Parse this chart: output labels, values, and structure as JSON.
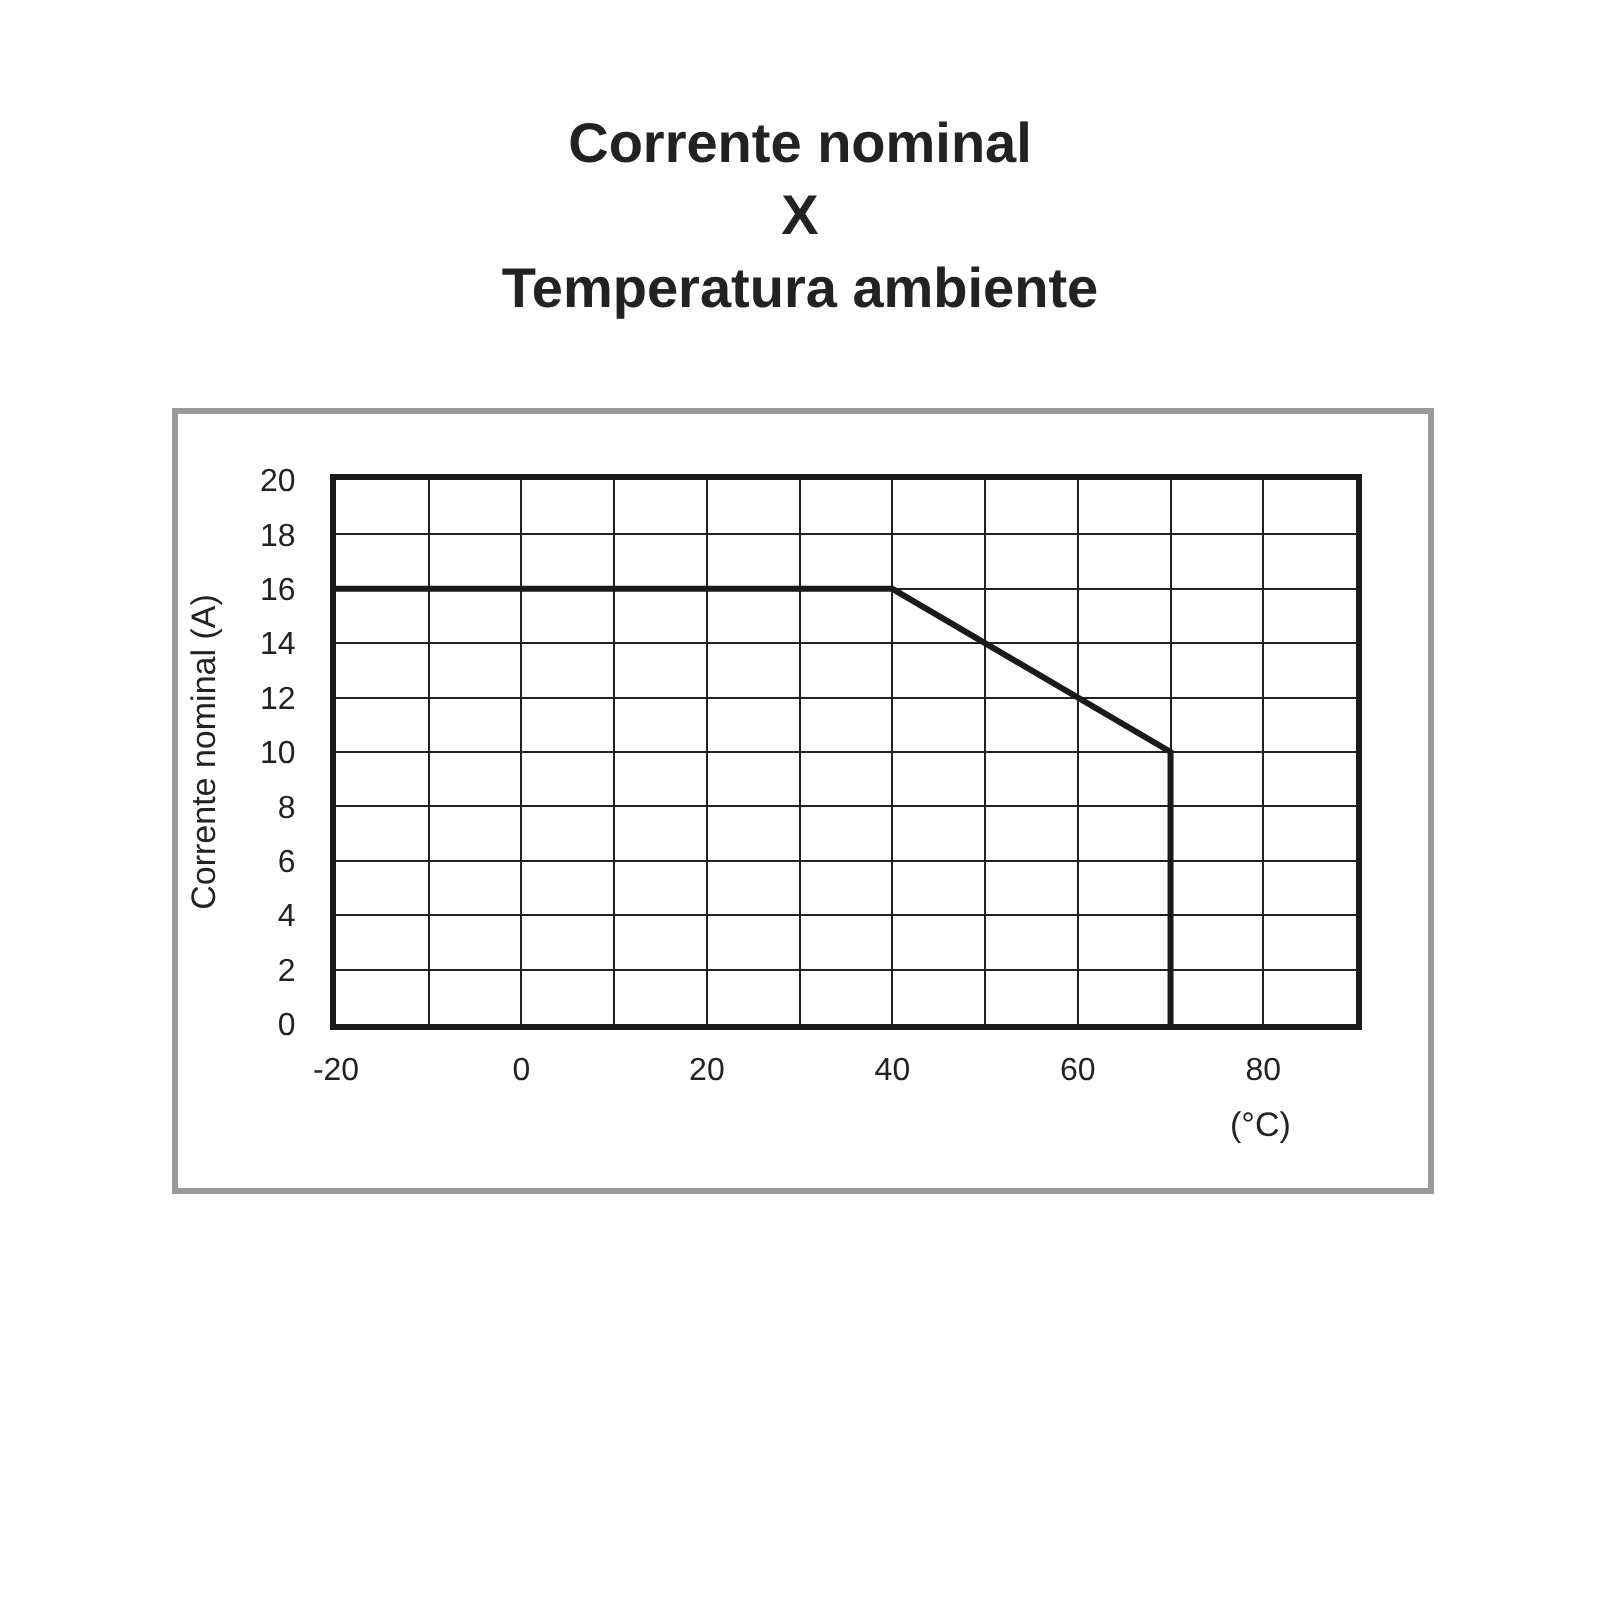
{
  "chart_data": {
    "type": "line",
    "title": "Corrente nominal\nX\nTemperatura ambiente",
    "xlabel": "(°C)",
    "ylabel": "Corrente nominal (A)",
    "x": [
      -20,
      40,
      70,
      70
    ],
    "series": [
      {
        "color": "#1a1a1a",
        "values": [
          16,
          16,
          10,
          0
        ]
      }
    ],
    "xlim": [
      -20,
      90
    ],
    "xticks": [
      -20,
      {
        "value": -10,
        "label": null
      },
      0,
      {
        "value": 10,
        "label": null
      },
      20,
      {
        "value": 30,
        "label": null
      },
      40,
      {
        "value": 50,
        "label": null
      },
      60,
      {
        "value": 70,
        "label": null
      },
      80,
      {
        "value": 90,
        "label": null
      }
    ],
    "ylim": [
      0,
      20
    ],
    "yticks": [
      0,
      2,
      4,
      6,
      8,
      10,
      12,
      14,
      16,
      18,
      20
    ],
    "grid": true,
    "marker": "none",
    "line_style": "solid"
  }
}
